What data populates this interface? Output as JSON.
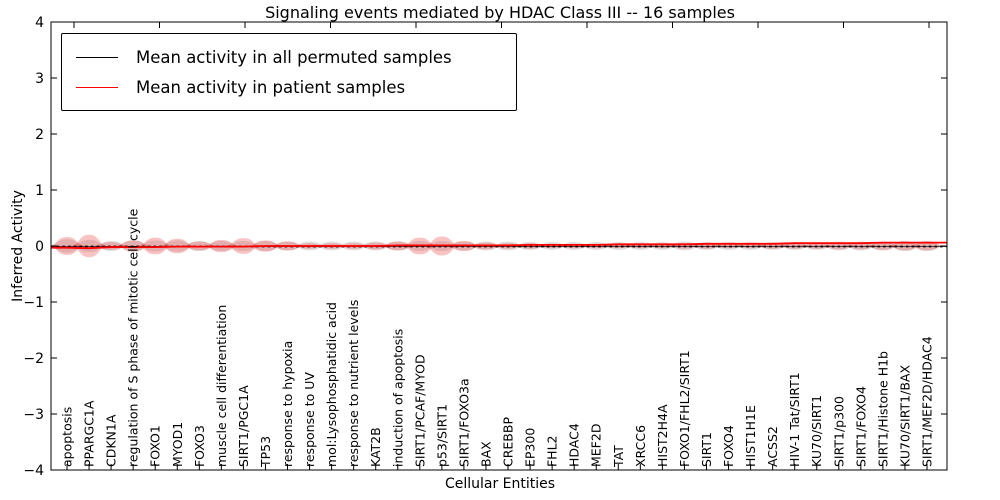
{
  "figure": {
    "title": "Signaling events mediated by HDAC Class III -- 16 samples",
    "xlabel": "Cellular Entities",
    "ylabel": "Inferred Activity"
  },
  "legend": {
    "items": [
      {
        "label": "Mean activity in all permuted samples",
        "color": "#000000"
      },
      {
        "label": "Mean activity in patient samples",
        "color": "#ff0000"
      }
    ]
  },
  "chart_data": {
    "type": "violin",
    "title": "Signaling events mediated by HDAC Class III -- 16 samples",
    "xlabel": "Cellular Entities",
    "ylabel": "Inferred Activity",
    "ylim": [
      -4,
      4
    ],
    "y_ticks": [
      "4",
      "3",
      "2",
      "1",
      "0",
      "−1",
      "−2",
      "−3",
      "−4"
    ],
    "grid": false,
    "legend_position": "upper left",
    "categories": [
      "apoptosis",
      "PPARGC1A",
      "CDKN1A",
      "regulation of S phase of mitotic cell cycle",
      "FOXO1",
      "MYOD1",
      "FOXO3",
      "muscle cell differentiation",
      "SIRT1/PGC1A",
      "TP53",
      "response to hypoxia",
      "response to UV",
      "mol:Lysophosphatidic acid",
      "response to nutrient levels",
      "KAT2B",
      "induction of apoptosis",
      "SIRT1/PCAF/MYOD",
      "p53/SIRT1",
      "SIRT1/FOXO3a",
      "BAX",
      "CREBBP",
      "EP300",
      "FHL2",
      "HDAC4",
      "MEF2D",
      "TAT",
      "XRCC6",
      "HIST2H4A",
      "FOXO1/FHL2/SIRT1",
      "SIRT1",
      "FOXO4",
      "HIST1H1E",
      "ACSS2",
      "HIV-1 Tat/SIRT1",
      "KU70/SIRT1",
      "SIRT1/p300",
      "SIRT1/FOXO4",
      "SIRT1/Histone H1b",
      "KU70/SIRT1/BAX",
      "SIRT1/MEF2D/HDAC4"
    ],
    "series": [
      {
        "name": "Mean activity in all permuted samples",
        "color": "#000000",
        "line_style": "dashed",
        "fill": "rgba(120,120,120,0.22)",
        "mean": [
          0,
          0,
          0,
          0,
          0,
          0,
          0,
          0,
          0,
          0,
          0,
          0,
          0,
          0,
          0,
          0,
          0,
          0,
          0,
          0,
          0,
          0,
          0,
          0,
          0,
          0,
          0,
          0,
          0,
          0,
          0,
          0,
          0,
          0,
          0,
          0,
          0,
          0,
          0,
          0
        ],
        "violin_halfwidth": [
          0.12,
          0.11,
          0.09,
          0.1,
          0.1,
          0.1,
          0.09,
          0.09,
          0.09,
          0.09,
          0.08,
          0.08,
          0.08,
          0.08,
          0.08,
          0.08,
          0.09,
          0.09,
          0.08,
          0.08,
          0.08,
          0.07,
          0.07,
          0.07,
          0.07,
          0.07,
          0.07,
          0.07,
          0.08,
          0.07,
          0.07,
          0.07,
          0.07,
          0.07,
          0.07,
          0.08,
          0.08,
          0.08,
          0.09,
          0.09
        ]
      },
      {
        "name": "Mean activity in patient samples",
        "color": "#ff0000",
        "line_style": "solid",
        "fill": "rgba(235,55,55,0.30)",
        "mean": [
          -0.03,
          -0.04,
          -0.02,
          -0.02,
          -0.02,
          -0.01,
          -0.01,
          -0.01,
          -0.01,
          0,
          0,
          0,
          0,
          0,
          0,
          0.01,
          0.01,
          0.01,
          0.01,
          0.01,
          0.01,
          0.02,
          0.02,
          0.02,
          0.02,
          0.03,
          0.03,
          0.03,
          0.03,
          0.04,
          0.04,
          0.04,
          0.04,
          0.05,
          0.05,
          0.05,
          0.05,
          0.06,
          0.06,
          0.06
        ],
        "violin_halfwidth": [
          0.16,
          0.2,
          0.07,
          0.1,
          0.15,
          0.13,
          0.08,
          0.11,
          0.14,
          0.1,
          0.08,
          0.05,
          0.05,
          0.05,
          0.06,
          0.08,
          0.15,
          0.17,
          0.09,
          0.06,
          0.05,
          0.05,
          0.04,
          0.04,
          0.04,
          0.04,
          0.04,
          0.04,
          0.05,
          0.05,
          0.04,
          0.04,
          0.05,
          0.05,
          0.05,
          0.06,
          0.06,
          0.07,
          0.08,
          0.08
        ]
      }
    ]
  }
}
